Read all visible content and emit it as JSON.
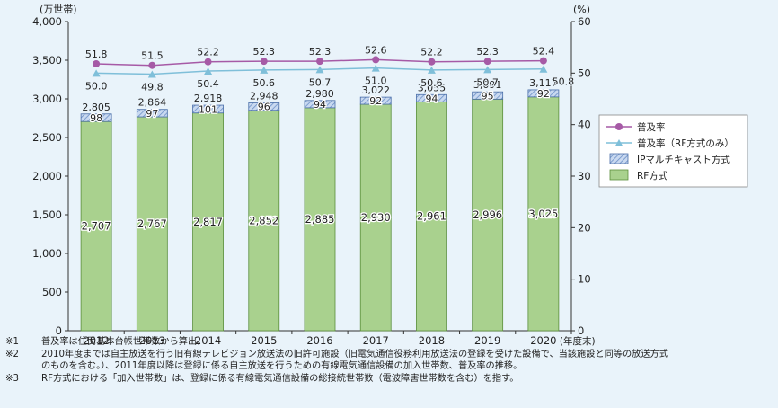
{
  "chart_data": {
    "type": "bar",
    "stacked": true,
    "categories": [
      "2012",
      "2013",
      "2014",
      "2015",
      "2016",
      "2017",
      "2018",
      "2019",
      "2020"
    ],
    "category_suffix": "(年度末)",
    "y_left_unit": "(万世帯)",
    "y_right_unit": "(%)",
    "y_left_ticks": [
      "0",
      "500",
      "1,000",
      "1,500",
      "2,000",
      "2,500",
      "3,000",
      "3,500",
      "4,000"
    ],
    "y_right_ticks": [
      "0",
      "10",
      "20",
      "30",
      "40",
      "50",
      "60"
    ],
    "ylim_left": [
      0,
      4000
    ],
    "ylim_right": [
      0,
      60
    ],
    "series": [
      {
        "name": "RF方式",
        "kind": "bar",
        "color": "#a9d18e",
        "values": [
          2707,
          2767,
          2817,
          2852,
          2885,
          2930,
          2961,
          2996,
          3025
        ],
        "labels": [
          "2,707",
          "2,767",
          "2,817",
          "2,852",
          "2,885",
          "2,930",
          "2,961",
          "2,996",
          "3,025"
        ]
      },
      {
        "name": "IPマルチキャスト方式",
        "kind": "bar",
        "color": "#9bb8e0",
        "values": [
          98,
          97,
          101,
          96,
          94,
          92,
          94,
          95,
          92
        ],
        "labels": [
          "98",
          "97",
          "101",
          "96",
          "94",
          "92",
          "94",
          "95",
          "92"
        ]
      },
      {
        "name": "普及率",
        "kind": "line",
        "axis": "right",
        "color": "#a65aa6",
        "values": [
          51.8,
          51.5,
          52.2,
          52.3,
          52.3,
          52.6,
          52.2,
          52.3,
          52.4
        ],
        "labels": [
          "51.8",
          "51.5",
          "52.2",
          "52.3",
          "52.3",
          "52.6",
          "52.2",
          "52.3",
          "52.4"
        ]
      },
      {
        "name": "普及率（RF方式のみ）",
        "kind": "line",
        "axis": "right",
        "color": "#7fbfd9",
        "values": [
          50.0,
          49.8,
          50.4,
          50.6,
          50.7,
          51.0,
          50.6,
          50.7,
          50.8
        ],
        "labels": [
          "50.0",
          "49.8",
          "50.4",
          "50.6",
          "50.7",
          "51.0",
          "50.6",
          "50.7",
          "50.8"
        ]
      }
    ],
    "totals": [
      2805,
      2864,
      2918,
      2948,
      2980,
      3022,
      3055,
      3091,
      3117
    ],
    "total_labels": [
      "2,805",
      "2,864",
      "2,918",
      "2,948",
      "2,980",
      "3,022",
      "3,055",
      "3,091",
      "3,117"
    ],
    "legend": {
      "position": "right",
      "items": [
        "普及率",
        "普及率（RF方式のみ）",
        "IPマルチキャスト方式",
        "RF方式"
      ]
    },
    "grid": false
  },
  "notes": [
    {
      "mark": "※1",
      "text": "普及率は住民基本台帳世帯数から算出。"
    },
    {
      "mark": "※2",
      "text": "2010年度までは自主放送を行う旧有線テレビジョン放送法の旧許可施設（旧電気通信役務利用放送法の登録を受けた設備で、当該施設と同等の放送方式"
    },
    {
      "mark": "",
      "text": "のものを含む。）、2011年度以降は登録に係る自主放送を行うための有線電気通信設備の加入世帯数、普及率の推移。"
    },
    {
      "mark": "※3",
      "text": "RF方式における「加入世帯数」は、登録に係る有線電気通信設備の総接続世帯数（電波障害世帯数を含む）を指す。"
    }
  ]
}
